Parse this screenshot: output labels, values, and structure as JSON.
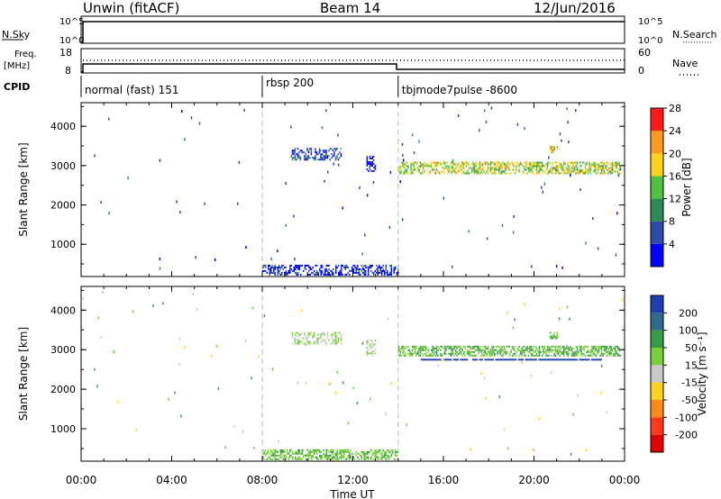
{
  "header": {
    "station": "Unwin (fitACF)",
    "beam": "Beam 14",
    "date": "12/Jun/2016"
  },
  "strip_labels": {
    "nsky": "N.Sky",
    "nsearch": "N.Search",
    "freq": "Freq.",
    "freq_unit": "[MHz]",
    "nave": "Nave",
    "cpid": "CPID",
    "nsky_ticks": [
      "10^5",
      "10^0"
    ],
    "nsearch_ticks": [
      "10^5",
      "10^0"
    ],
    "freq_ticks": [
      "18",
      "8"
    ],
    "nave_ticks": [
      "60",
      "0"
    ]
  },
  "cpid_segments": [
    {
      "label": "normal (fast) 151",
      "start": 0,
      "end": 8
    },
    {
      "label": "rbsp 200",
      "start": 8,
      "end": 14
    },
    {
      "label": "tbjmode7pulse -8600",
      "start": 14,
      "end": 24
    }
  ],
  "chart_data": [
    {
      "type": "heatmap",
      "name": "power",
      "ylabel": "Slant Range [km]",
      "ylim": [
        180,
        4600
      ],
      "yticks": [
        "1000",
        "2000",
        "3000",
        "4000"
      ],
      "colorbar": {
        "label": "Power [dB]",
        "ticks": [
          "4",
          "8",
          "12",
          "16",
          "20",
          "24",
          "28"
        ],
        "colors": [
          "#0000ff",
          "#2d4aa8",
          "#2e8b57",
          "#52c042",
          "#ffd21f",
          "#ff9a1f",
          "#ff1a1a"
        ]
      },
      "regions": [
        {
          "t0": 8.0,
          "t1": 14.0,
          "r0": 230,
          "r1": 480,
          "value": 6,
          "density": 0.55
        },
        {
          "t0": 9.3,
          "t1": 11.5,
          "r0": 3150,
          "r1": 3450,
          "value": 7,
          "density": 0.5
        },
        {
          "t0": 12.6,
          "t1": 13.0,
          "r0": 2850,
          "r1": 3250,
          "value": 5,
          "density": 0.6
        },
        {
          "t0": 14.0,
          "t1": 23.8,
          "r0": 2800,
          "r1": 3100,
          "value": 18,
          "density": 0.6
        },
        {
          "t0": 20.7,
          "t1": 21.0,
          "r0": 3350,
          "r1": 3500,
          "value": 22,
          "density": 0.6
        }
      ]
    },
    {
      "type": "heatmap",
      "name": "velocity",
      "ylabel": "Slant Range [km]",
      "ylim": [
        180,
        4600
      ],
      "yticks": [
        "1000",
        "2000",
        "3000",
        "4000"
      ],
      "colorbar": {
        "label": "Velocity [m s⁻¹]",
        "ticks": [
          "200",
          "100",
          "50",
          "15",
          "-15",
          "-50",
          "-100",
          "-200"
        ],
        "colors": [
          "#1f3fb0",
          "#2e6a8a",
          "#3a9a4a",
          "#7ad03a",
          "#c8c8c8",
          "#ffd21f",
          "#ff8c1a",
          "#ff3a1a",
          "#e00000"
        ]
      },
      "regions": [
        {
          "t0": 8.0,
          "t1": 14.0,
          "r0": 230,
          "r1": 480,
          "value": 20,
          "density": 0.55
        },
        {
          "t0": 9.3,
          "t1": 11.5,
          "r0": 3150,
          "r1": 3450,
          "value": 0,
          "density": 0.45
        },
        {
          "t0": 12.6,
          "t1": 13.0,
          "r0": 2850,
          "r1": 3250,
          "value": 0,
          "density": 0.5
        },
        {
          "t0": 14.0,
          "t1": 23.8,
          "r0": 2850,
          "r1": 3100,
          "value": 30,
          "density": 0.6
        },
        {
          "t0": 15.0,
          "t1": 23.0,
          "r0": 2740,
          "r1": 2770,
          "value": 180,
          "density": 0.9
        },
        {
          "t0": 20.7,
          "t1": 21.0,
          "r0": 3300,
          "r1": 3450,
          "value": 30,
          "density": 0.6
        }
      ]
    }
  ],
  "xaxis": {
    "label": "Time UT",
    "ticks": [
      "00:00",
      "04:00",
      "08:00",
      "12:00",
      "16:00",
      "20:00",
      "00:00"
    ]
  }
}
